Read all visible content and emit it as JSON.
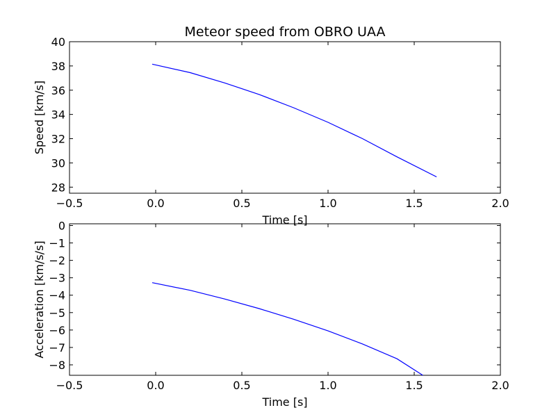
{
  "chart_data": [
    {
      "type": "line",
      "title": "Meteor speed from  OBRO UAA",
      "xlabel": "Time [s]",
      "ylabel": "Speed [km/s]",
      "xlim": [
        -0.5,
        2.0
      ],
      "ylim": [
        27.5,
        40
      ],
      "xticks": [
        -0.5,
        0.0,
        0.5,
        1.0,
        1.5,
        2.0
      ],
      "xtick_labels": [
        "−0.5",
        "0.0",
        "0.5",
        "1.0",
        "1.5",
        "2.0"
      ],
      "yticks": [
        28,
        30,
        32,
        34,
        36,
        38,
        40
      ],
      "ytick_labels": [
        "28",
        "30",
        "32",
        "34",
        "36",
        "38",
        "40"
      ],
      "grid": false,
      "series": [
        {
          "color": "#0000ff",
          "x": [
            -0.02,
            0.2,
            0.4,
            0.6,
            0.8,
            1.0,
            1.2,
            1.4,
            1.63
          ],
          "y": [
            38.15,
            37.45,
            36.6,
            35.65,
            34.55,
            33.35,
            32.0,
            30.5,
            28.85
          ]
        }
      ]
    },
    {
      "type": "line",
      "xlabel": "Time [s]",
      "ylabel": "Acceleration [km/s/s]",
      "xlim": [
        -0.5,
        2.0
      ],
      "ylim": [
        -8.6,
        0.1
      ],
      "xticks": [
        -0.5,
        0.0,
        0.5,
        1.0,
        1.5,
        2.0
      ],
      "xtick_labels": [
        "−0.5",
        "0.0",
        "0.5",
        "1.0",
        "1.5",
        "2.0"
      ],
      "yticks": [
        0,
        -1,
        -2,
        -3,
        -4,
        -5,
        -6,
        -7,
        -8
      ],
      "ytick_labels": [
        "0",
        "−1",
        "−2",
        "−3",
        "−4",
        "−5",
        "−6",
        "−7",
        "−8"
      ],
      "grid": false,
      "series": [
        {
          "color": "#0000ff",
          "x": [
            -0.02,
            0.2,
            0.4,
            0.6,
            0.8,
            1.0,
            1.2,
            1.4,
            1.55
          ],
          "y": [
            -3.28,
            -3.72,
            -4.22,
            -4.77,
            -5.38,
            -6.05,
            -6.8,
            -7.65,
            -8.6
          ]
        }
      ]
    }
  ]
}
